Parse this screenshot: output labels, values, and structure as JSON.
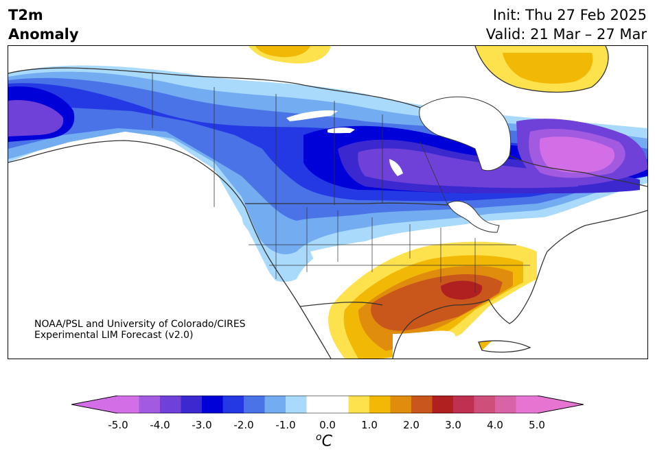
{
  "header": {
    "title_line1": "T2m",
    "title_line2": "Anomaly",
    "init": "Init: Thu 27 Feb 2025",
    "valid": "Valid: 21 Mar – 27 Mar"
  },
  "credit": {
    "line1": "NOAA/PSL and University of Colorado/CIRES",
    "line2": "Experimental LIM Forecast (v2.0)"
  },
  "colorbar": {
    "unit": "C",
    "unit_prefix": "o",
    "tick_labels": [
      "-5.0",
      "-4.0",
      "-3.0",
      "-2.0",
      "-1.0",
      "0.0",
      "1.0",
      "2.0",
      "3.0",
      "4.0",
      "5.0"
    ],
    "colors": [
      "#d36fe6",
      "#a25be0",
      "#7041d9",
      "#3b29cf",
      "#0000d8",
      "#2439e3",
      "#4b73e8",
      "#73acf0",
      "#a9dafc",
      "#ffffff",
      "#ffffff",
      "#fde24e",
      "#f1b905",
      "#e08d0e",
      "#c9561a",
      "#b02020",
      "#c03050",
      "#cd4f7a",
      "#d964a5",
      "#e575d0"
    ],
    "under_color": "#d36fe6",
    "over_color": "#e575d0"
  },
  "map": {
    "land_outline_color": "#333333",
    "regions": [
      {
        "name": "alaska-cold",
        "color": "#7041d9"
      },
      {
        "name": "canada-cold-core",
        "color": "#0000d8"
      },
      {
        "name": "quebec-cold",
        "color": "#d36fe6"
      },
      {
        "name": "southeast-warm",
        "color": "#c9561a"
      },
      {
        "name": "gulf-warm",
        "color": "#b02020"
      },
      {
        "name": "greenland-warm",
        "color": "#fde24e"
      }
    ]
  }
}
